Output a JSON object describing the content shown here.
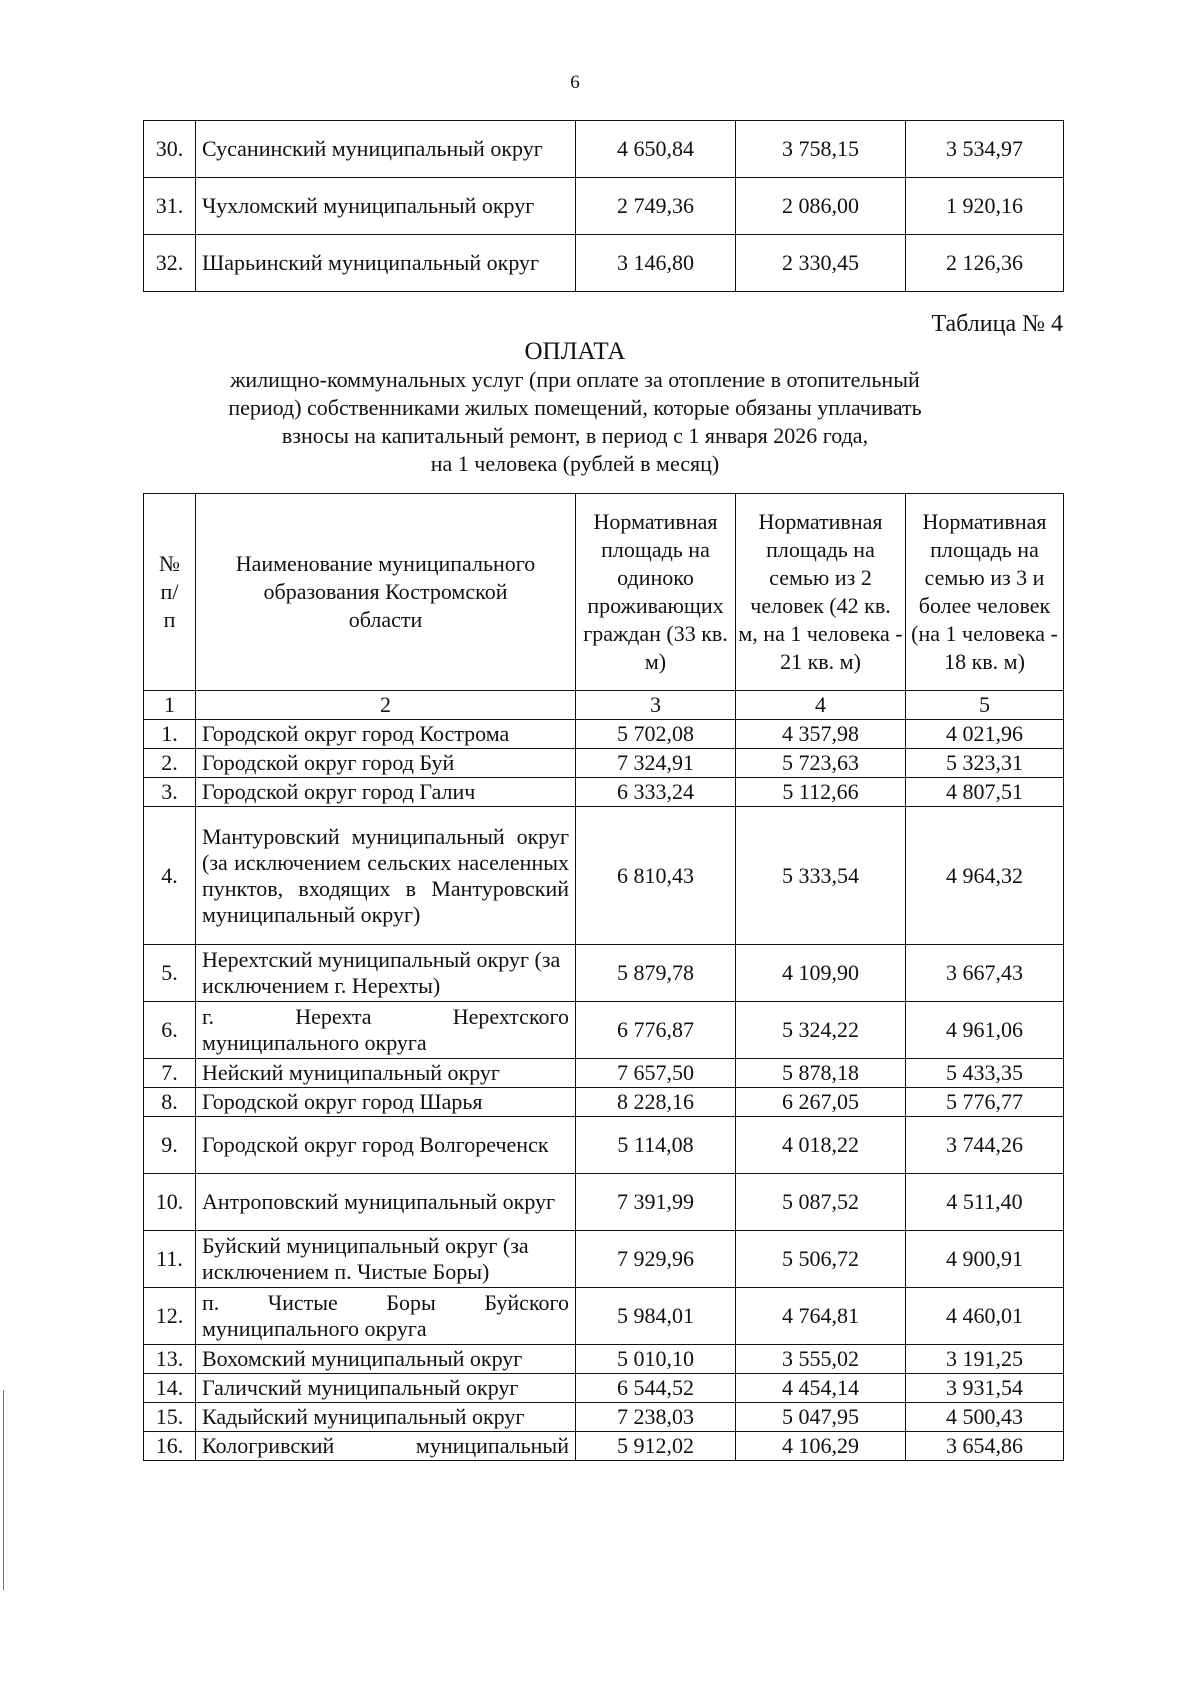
{
  "page_number": "6",
  "continued_table": {
    "rows": [
      {
        "num": "30.",
        "name": "Сусанинский муниципальный округ",
        "c3": "4 650,84",
        "c4": "3 758,15",
        "c5": "3 534,97"
      },
      {
        "num": "31.",
        "name": "Чухломский муниципальный округ",
        "c3": "2 749,36",
        "c4": "2 086,00",
        "c5": "1 920,16"
      },
      {
        "num": "32.",
        "name": "Шарьинский муниципальный округ",
        "c3": "3 146,80",
        "c4": "2 330,45",
        "c5": "2 126,36"
      }
    ]
  },
  "table4": {
    "label": "Таблица № 4",
    "title": "ОПЛАТА",
    "subtitle_lines": [
      "жилищно-коммунальных услуг (при оплате за отопление в отопительный",
      "период) собственниками жилых помещений, которые обязаны уплачивать",
      "взносы  на капитальный ремонт, в период с 1 января 2026 года,",
      "на 1 человека (рублей в месяц)"
    ],
    "headers": [
      "№ п/ п",
      "Наименование муниципального образования Костромской области",
      "Нормативная площадь на одиноко проживающих граждан (33 кв. м)",
      "Нормативная площадь на семью из 2 человек (42 кв. м, на 1 человека - 21 кв. м)",
      "Нормативная площадь на семью из 3 и более человек (на 1 человека - 18 кв. м)"
    ],
    "column_numbers": [
      "1",
      "2",
      "3",
      "4",
      "5"
    ],
    "rows": [
      {
        "num": "1.",
        "name": "Городской округ город Кострома",
        "c3": "5 702,08",
        "c4": "4 357,98",
        "c5": "4 021,96"
      },
      {
        "num": "2.",
        "name": "Городской округ город Буй",
        "c3": "7 324,91",
        "c4": "5 723,63",
        "c5": "5 323,31"
      },
      {
        "num": "3.",
        "name": "Городской округ город Галич",
        "c3": "6 333,24",
        "c4": "5 112,66",
        "c5": "4 807,51"
      },
      {
        "num": "4.",
        "name": "Мантуровский муниципальный округ (за исключением сельских населенных пунктов, входящих в Мантуровский муниципальный округ)",
        "c3": "6 810,43",
        "c4": "5 333,54",
        "c5": "4 964,32"
      },
      {
        "num": "5.",
        "name": "Нерехтский муниципальный округ (за исключением г. Нерехты)",
        "c3": "5 879,78",
        "c4": "4 109,90",
        "c5": "3 667,43"
      },
      {
        "num": "6.",
        "name": "г. Нерехта Нерехтского муниципального округа",
        "c3": "6 776,87",
        "c4": "5 324,22",
        "c5": "4 961,06"
      },
      {
        "num": "7.",
        "name": "Нейский муниципальный округ",
        "c3": "7 657,50",
        "c4": "5 878,18",
        "c5": "5 433,35"
      },
      {
        "num": "8.",
        "name": "Городской округ город Шарья",
        "c3": "8 228,16",
        "c4": "6 267,05",
        "c5": "5 776,77"
      },
      {
        "num": "9.",
        "name": "Городской округ город Волгореченск",
        "c3": "5 114,08",
        "c4": "4 018,22",
        "c5": "3 744,26"
      },
      {
        "num": "10.",
        "name": "Антроповский муниципальный округ",
        "c3": "7 391,99",
        "c4": "5 087,52",
        "c5": "4 511,40"
      },
      {
        "num": "11.",
        "name": "Буйский муниципальный округ (за исключением п. Чистые Боры)",
        "c3": "7 929,96",
        "c4": "5 506,72",
        "c5": "4 900,91"
      },
      {
        "num": "12.",
        "name": "п. Чистые Боры Буйского муниципального округа",
        "c3": "5 984,01",
        "c4": "4 764,81",
        "c5": "4 460,01"
      },
      {
        "num": "13.",
        "name": "Вохомский муниципальный округ",
        "c3": "5 010,10",
        "c4": "3 555,02",
        "c5": "3 191,25"
      },
      {
        "num": "14.",
        "name": "Галичский муниципальный округ",
        "c3": "6 544,52",
        "c4": "4 454,14",
        "c5": "3 931,54"
      },
      {
        "num": "15.",
        "name": "Кадыйский муниципальный округ",
        "c3": "7 238,03",
        "c4": "5 047,95",
        "c5": "4 500,43"
      },
      {
        "num": "16.",
        "name": "Кологривский муниципальный",
        "c3": "5 912,02",
        "c4": "4 106,29",
        "c5": "3 654,86"
      }
    ]
  }
}
